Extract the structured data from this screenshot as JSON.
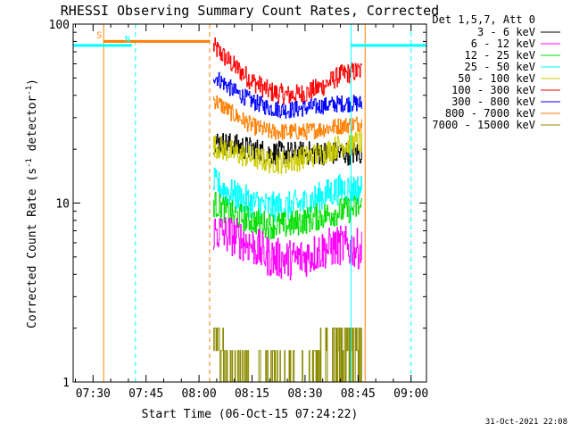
{
  "chart_data": {
    "type": "line",
    "title": "RHESSI Observing Summary Count Rates, Corrected",
    "xlabel": "Start Time (06-Oct-15 07:24:22)",
    "ylabel": "Corrected Count Rate (s⁻¹ detector⁻¹)",
    "ylabel_main": "Corrected Count Rate (s",
    "ylabel_sup1": "-1",
    "ylabel_mid": " detector",
    "ylabel_sup2": "-1",
    "ylabel_end": ")",
    "timestamp": "31-Oct-2021 22:08",
    "y_scale": "log",
    "ylim": [
      1,
      100
    ],
    "xlim": [
      "07:24:22",
      "09:04:22"
    ],
    "x_ticks": [
      "07:30",
      "07:45",
      "08:00",
      "08:15",
      "08:30",
      "08:45",
      "09:00"
    ],
    "y_ticks": [
      "1",
      "10",
      "100"
    ],
    "legend": {
      "placement": "outside-right",
      "header": "Det 1,5,7, Att 0",
      "entries": [
        {
          "label": "3 - 6 keV",
          "color": "#000000"
        },
        {
          "label": "6 - 12 keV",
          "color": "#ff00ff"
        },
        {
          "label": "12 - 25 keV",
          "color": "#00dd00"
        },
        {
          "label": "25 - 50 keV",
          "color": "#00ffff"
        },
        {
          "label": "50 - 100 keV",
          "color": "#cccc00"
        },
        {
          "label": "100 - 300 keV",
          "color": "#ff0000"
        },
        {
          "label": "300 - 800 keV",
          "color": "#0000ff"
        },
        {
          "label": "800 - 7000 keV",
          "color": "#ff7f00"
        },
        {
          "label": "7000 - 15000 keV",
          "color": "#8b8b00"
        }
      ]
    },
    "data_window": {
      "start": "08:04",
      "end": "08:47"
    },
    "series": [
      {
        "color": "#ff0000",
        "x": [
          "08:04",
          "08:10",
          "08:15",
          "08:20",
          "08:25",
          "08:30",
          "08:35",
          "08:40",
          "08:46"
        ],
        "values": [
          75,
          58,
          48,
          42,
          40,
          41,
          45,
          52,
          55
        ],
        "noise": 0.06
      },
      {
        "color": "#0000ff",
        "x": [
          "08:04",
          "08:10",
          "08:15",
          "08:20",
          "08:25",
          "08:30",
          "08:35",
          "08:40",
          "08:46"
        ],
        "values": [
          52,
          42,
          37,
          34,
          33,
          34,
          35,
          36,
          36
        ],
        "noise": 0.05
      },
      {
        "color": "#ff7f00",
        "x": [
          "08:04",
          "08:10",
          "08:15",
          "08:20",
          "08:25",
          "08:30",
          "08:35",
          "08:40",
          "08:46"
        ],
        "values": [
          38,
          31,
          27,
          25,
          25,
          25,
          26,
          27,
          28
        ],
        "noise": 0.05
      },
      {
        "color": "#000000",
        "x": [
          "08:04",
          "08:10",
          "08:15",
          "08:20",
          "08:25",
          "08:30",
          "08:35",
          "08:40",
          "08:46"
        ],
        "values": [
          22,
          21,
          20,
          19,
          19,
          19,
          19,
          19,
          19
        ],
        "noise": 0.07
      },
      {
        "color": "#cccc00",
        "x": [
          "08:04",
          "08:10",
          "08:15",
          "08:20",
          "08:25",
          "08:30",
          "08:35",
          "08:40",
          "08:46"
        ],
        "values": [
          21,
          19,
          18,
          17,
          17,
          18,
          19,
          21,
          22
        ],
        "noise": 0.07
      },
      {
        "color": "#00ffff",
        "x": [
          "08:04",
          "08:10",
          "08:15",
          "08:20",
          "08:25",
          "08:30",
          "08:35",
          "08:40",
          "08:46"
        ],
        "values": [
          13,
          11,
          10,
          9.5,
          9.5,
          10,
          11,
          12,
          12
        ],
        "noise": 0.09
      },
      {
        "color": "#00dd00",
        "x": [
          "08:04",
          "08:10",
          "08:15",
          "08:20",
          "08:25",
          "08:30",
          "08:35",
          "08:40",
          "08:46"
        ],
        "values": [
          10,
          8.5,
          8,
          7.5,
          7.5,
          8,
          8.5,
          9,
          9.5
        ],
        "noise": 0.08
      },
      {
        "color": "#ff00ff",
        "x": [
          "08:04",
          "08:10",
          "08:15",
          "08:20",
          "08:25",
          "08:30",
          "08:35",
          "08:40",
          "08:46"
        ],
        "values": [
          7,
          6.5,
          5.8,
          5,
          4.8,
          5,
          5.5,
          5.8,
          5.5
        ],
        "noise": 0.12
      },
      {
        "color": "#8b8b00",
        "x": [
          "08:04",
          "08:06",
          "08:10",
          "08:30",
          "08:34",
          "08:38",
          "08:42",
          "08:46"
        ],
        "values": [
          2.5,
          1.5,
          1.0,
          1.0,
          1.2,
          1.6,
          2.0,
          1.8
        ],
        "noise": 0.25
      }
    ],
    "flags": [
      {
        "label": "S",
        "color": "#ff7f00",
        "line_at": "07:33",
        "bar": [
          "07:33",
          "08:03"
        ],
        "level": 80
      },
      {
        "label": "N",
        "color": "#00ffff",
        "line_at": "07:41",
        "bar": [
          "07:24:22",
          "07:41"
        ],
        "level": 76
      }
    ],
    "night_bars": [
      {
        "color": "#00ffff",
        "range": [
          "08:43",
          "09:04"
        ],
        "level": 76
      }
    ],
    "vertical_markers": [
      {
        "time": "07:33",
        "color": "#ff7f00",
        "style": "solid"
      },
      {
        "time": "07:42",
        "color": "#00ffff",
        "style": "dashed"
      },
      {
        "time": "08:03",
        "color": "#ff7f00",
        "style": "dashed"
      },
      {
        "time": "08:43",
        "color": "#00ffff",
        "style": "solid"
      },
      {
        "time": "08:47",
        "color": "#ff7f00",
        "style": "solid"
      },
      {
        "time": "09:00",
        "color": "#00ffff",
        "style": "dashed"
      }
    ]
  }
}
